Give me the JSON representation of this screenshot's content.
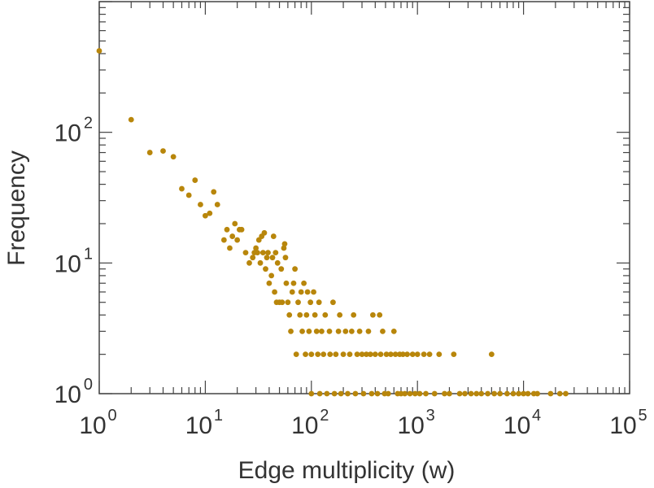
{
  "chart_data": {
    "type": "scatter",
    "xscale": "log",
    "yscale": "log",
    "xlabel": "Edge multiplicity (w)",
    "ylabel": "Frequency",
    "xlim": [
      1,
      100000
    ],
    "ylim": [
      1,
      1000
    ],
    "marker_color": "#B8860B",
    "x_ticks": [
      {
        "base": "10",
        "exp": "0",
        "value": 1
      },
      {
        "base": "10",
        "exp": "1",
        "value": 10
      },
      {
        "base": "10",
        "exp": "2",
        "value": 100
      },
      {
        "base": "10",
        "exp": "3",
        "value": 1000
      },
      {
        "base": "10",
        "exp": "4",
        "value": 10000
      },
      {
        "base": "10",
        "exp": "5",
        "value": 100000
      }
    ],
    "y_ticks": [
      {
        "base": "10",
        "exp": "0",
        "value": 1
      },
      {
        "base": "10",
        "exp": "1",
        "value": 10
      },
      {
        "base": "10",
        "exp": "2",
        "value": 100
      }
    ],
    "series": [
      {
        "name": "frequency",
        "points": [
          [
            1,
            420
          ],
          [
            2,
            125
          ],
          [
            3,
            70
          ],
          [
            4,
            72
          ],
          [
            5,
            65
          ],
          [
            6,
            37
          ],
          [
            7,
            33
          ],
          [
            8,
            43
          ],
          [
            9,
            28
          ],
          [
            10,
            23
          ],
          [
            11,
            24
          ],
          [
            12,
            35
          ],
          [
            13,
            28
          ],
          [
            15,
            15
          ],
          [
            16,
            18
          ],
          [
            17,
            13
          ],
          [
            18,
            16
          ],
          [
            19,
            20
          ],
          [
            20,
            15
          ],
          [
            21,
            18
          ],
          [
            22,
            18
          ],
          [
            24,
            12
          ],
          [
            26,
            10
          ],
          [
            28,
            11
          ],
          [
            29,
            12
          ],
          [
            30,
            13
          ],
          [
            31,
            12
          ],
          [
            32,
            15
          ],
          [
            33,
            10
          ],
          [
            34,
            16
          ],
          [
            35,
            12
          ],
          [
            36,
            17
          ],
          [
            37,
            9
          ],
          [
            38,
            11
          ],
          [
            39,
            12
          ],
          [
            40,
            7
          ],
          [
            42,
            8
          ],
          [
            43,
            11
          ],
          [
            44,
            16
          ],
          [
            45,
            6
          ],
          [
            46,
            12
          ],
          [
            47,
            5
          ],
          [
            48,
            10
          ],
          [
            50,
            5
          ],
          [
            52,
            9
          ],
          [
            53,
            5
          ],
          [
            55,
            13
          ],
          [
            56,
            14
          ],
          [
            57,
            11
          ],
          [
            58,
            7
          ],
          [
            60,
            5
          ],
          [
            62,
            4
          ],
          [
            64,
            3
          ],
          [
            66,
            6
          ],
          [
            68,
            7
          ],
          [
            70,
            9
          ],
          [
            72,
            2
          ],
          [
            75,
            5
          ],
          [
            78,
            4
          ],
          [
            80,
            6
          ],
          [
            82,
            3
          ],
          [
            85,
            7
          ],
          [
            88,
            2
          ],
          [
            90,
            4
          ],
          [
            92,
            6
          ],
          [
            95,
            3
          ],
          [
            98,
            5
          ],
          [
            100,
            2
          ],
          [
            100,
            1
          ],
          [
            105,
            6
          ],
          [
            108,
            4
          ],
          [
            112,
            3
          ],
          [
            115,
            2
          ],
          [
            118,
            5
          ],
          [
            120,
            1
          ],
          [
            125,
            3
          ],
          [
            130,
            2
          ],
          [
            135,
            4
          ],
          [
            140,
            1
          ],
          [
            148,
            3
          ],
          [
            150,
            2
          ],
          [
            160,
            5
          ],
          [
            165,
            1
          ],
          [
            170,
            2
          ],
          [
            180,
            3
          ],
          [
            185,
            4
          ],
          [
            190,
            1
          ],
          [
            200,
            2
          ],
          [
            210,
            3
          ],
          [
            220,
            1
          ],
          [
            230,
            2
          ],
          [
            240,
            3
          ],
          [
            250,
            4
          ],
          [
            260,
            1
          ],
          [
            270,
            2
          ],
          [
            285,
            3
          ],
          [
            300,
            2
          ],
          [
            310,
            1
          ],
          [
            330,
            2
          ],
          [
            345,
            3
          ],
          [
            360,
            2
          ],
          [
            370,
            1
          ],
          [
            380,
            4
          ],
          [
            400,
            2
          ],
          [
            420,
            1
          ],
          [
            440,
            4
          ],
          [
            450,
            2
          ],
          [
            470,
            3
          ],
          [
            490,
            1
          ],
          [
            510,
            2
          ],
          [
            530,
            1
          ],
          [
            560,
            2
          ],
          [
            600,
            3
          ],
          [
            620,
            2
          ],
          [
            650,
            1
          ],
          [
            680,
            2
          ],
          [
            700,
            1
          ],
          [
            730,
            2
          ],
          [
            760,
            1
          ],
          [
            800,
            2
          ],
          [
            850,
            1
          ],
          [
            900,
            2
          ],
          [
            950,
            1
          ],
          [
            1000,
            2
          ],
          [
            1050,
            1
          ],
          [
            1150,
            2
          ],
          [
            1200,
            1
          ],
          [
            1300,
            2
          ],
          [
            1450,
            1
          ],
          [
            1600,
            2
          ],
          [
            1800,
            1
          ],
          [
            2000,
            1
          ],
          [
            2200,
            2
          ],
          [
            2500,
            1
          ],
          [
            2800,
            1
          ],
          [
            3200,
            1
          ],
          [
            3600,
            1
          ],
          [
            4000,
            1
          ],
          [
            4600,
            1
          ],
          [
            5000,
            2
          ],
          [
            5300,
            1
          ],
          [
            6000,
            1
          ],
          [
            7000,
            1
          ],
          [
            8000,
            1
          ],
          [
            9000,
            1
          ],
          [
            10000,
            1
          ],
          [
            11000,
            1
          ],
          [
            12500,
            1
          ],
          [
            13500,
            1
          ],
          [
            18000,
            1
          ],
          [
            22000,
            1
          ],
          [
            25000,
            1
          ]
        ]
      }
    ]
  }
}
